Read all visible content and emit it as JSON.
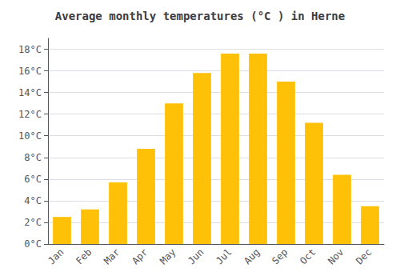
{
  "chart_data": {
    "type": "bar",
    "title": "Average monthly temperatures (°C ) in Herne",
    "categories": [
      "Jan",
      "Feb",
      "Mar",
      "Apr",
      "May",
      "Jun",
      "Jul",
      "Aug",
      "Sep",
      "Oct",
      "Nov",
      "Dec"
    ],
    "values": [
      2.5,
      3.2,
      5.7,
      8.8,
      13.0,
      15.8,
      17.6,
      17.6,
      15.0,
      11.2,
      6.4,
      3.5
    ],
    "color": "#FFC107",
    "ylim": [
      0,
      19
    ],
    "yticks": [
      {
        "value": 0,
        "label": "0°C"
      },
      {
        "value": 2,
        "label": "2°C"
      },
      {
        "value": 4,
        "label": "4°C"
      },
      {
        "value": 6,
        "label": "6°C"
      },
      {
        "value": 8,
        "label": "8°C"
      },
      {
        "value": 10,
        "label": "10°C"
      },
      {
        "value": 12,
        "label": "12°C"
      },
      {
        "value": 14,
        "label": "14°C"
      },
      {
        "value": 16,
        "label": "16°C"
      },
      {
        "value": 18,
        "label": "18°C"
      }
    ],
    "grid": true
  }
}
